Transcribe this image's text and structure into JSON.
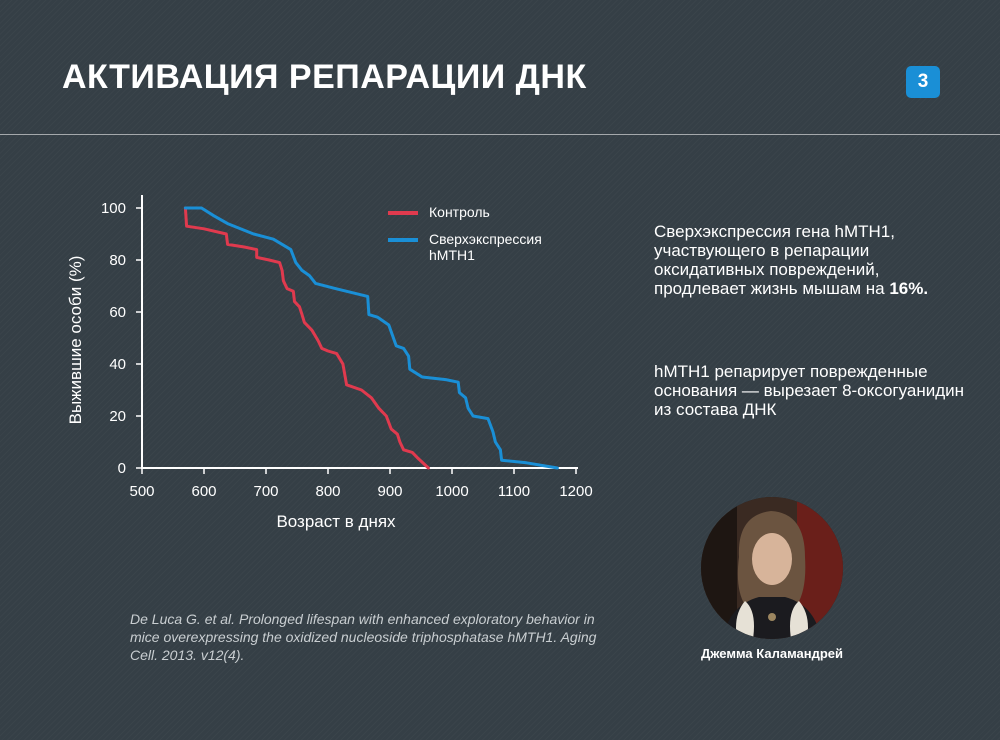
{
  "slide": {
    "title": "АКТИВАЦИЯ РЕПАРАЦИИ ДНК",
    "page_number": "3"
  },
  "description": {
    "p1_text": "Сверхэкспрессия гена hMTH1, участвующего в репарации оксидативных повреждений, продлевает жизнь мышам на ",
    "p1_bold": "16%.",
    "p2_text": "hMTH1 репарирует поврежденные основания — вырезает 8-оксогуанидин из состава ДНК"
  },
  "citation": "De Luca G. et al. Prolonged lifespan with enhanced exploratory behavior in mice overexpressing the oxidized nucleoside triphosphatase hMTH1. Aging Cell. 2013. v12(4).",
  "speaker": {
    "name": "Джемма Каламандрей"
  },
  "colors": {
    "control": "#e03a4e",
    "overexpression": "#1a8fd6",
    "badge": "#1a8fd6"
  },
  "chart_data": {
    "type": "line",
    "xlabel": "Возраст в днях",
    "ylabel": "Выжившие особи (%)",
    "xlim": [
      500,
      1200
    ],
    "ylim": [
      0,
      100
    ],
    "xticks": [
      500,
      600,
      700,
      800,
      900,
      1000,
      1100,
      1200
    ],
    "yticks": [
      0,
      20,
      40,
      60,
      80,
      100
    ],
    "grid": false,
    "legend_position": "top-right",
    "series": [
      {
        "name": "Контроль",
        "points": [
          [
            570,
            100
          ],
          [
            572,
            93
          ],
          [
            600,
            92
          ],
          [
            636,
            90
          ],
          [
            638,
            86
          ],
          [
            665,
            85
          ],
          [
            685,
            84
          ],
          [
            685,
            81
          ],
          [
            705,
            80
          ],
          [
            722,
            79
          ],
          [
            726,
            76
          ],
          [
            728,
            72
          ],
          [
            734,
            69
          ],
          [
            744,
            68
          ],
          [
            746,
            64
          ],
          [
            754,
            62
          ],
          [
            758,
            59
          ],
          [
            762,
            56
          ],
          [
            774,
            53
          ],
          [
            784,
            49
          ],
          [
            790,
            46
          ],
          [
            800,
            45
          ],
          [
            814,
            44
          ],
          [
            824,
            40
          ],
          [
            830,
            32
          ],
          [
            854,
            30
          ],
          [
            870,
            27
          ],
          [
            882,
            23
          ],
          [
            894,
            20
          ],
          [
            902,
            15
          ],
          [
            912,
            13
          ],
          [
            916,
            10
          ],
          [
            922,
            7
          ],
          [
            936,
            6
          ],
          [
            944,
            4
          ],
          [
            962,
            0
          ]
        ]
      },
      {
        "name": "Сверхэкспрессия hMTH1",
        "points": [
          [
            570,
            100
          ],
          [
            596,
            100
          ],
          [
            616,
            97
          ],
          [
            638,
            94
          ],
          [
            680,
            90
          ],
          [
            712,
            88
          ],
          [
            740,
            84
          ],
          [
            748,
            79
          ],
          [
            758,
            76
          ],
          [
            770,
            74
          ],
          [
            780,
            71
          ],
          [
            812,
            69
          ],
          [
            864,
            66
          ],
          [
            866,
            59
          ],
          [
            880,
            58
          ],
          [
            898,
            55
          ],
          [
            904,
            51
          ],
          [
            910,
            47
          ],
          [
            922,
            46
          ],
          [
            930,
            43
          ],
          [
            932,
            38
          ],
          [
            952,
            35
          ],
          [
            990,
            34
          ],
          [
            1010,
            33
          ],
          [
            1012,
            29
          ],
          [
            1022,
            27
          ],
          [
            1026,
            23
          ],
          [
            1034,
            20
          ],
          [
            1058,
            19
          ],
          [
            1066,
            14
          ],
          [
            1070,
            10
          ],
          [
            1078,
            7
          ],
          [
            1080,
            3
          ],
          [
            1120,
            2
          ],
          [
            1170,
            0
          ]
        ]
      }
    ]
  }
}
